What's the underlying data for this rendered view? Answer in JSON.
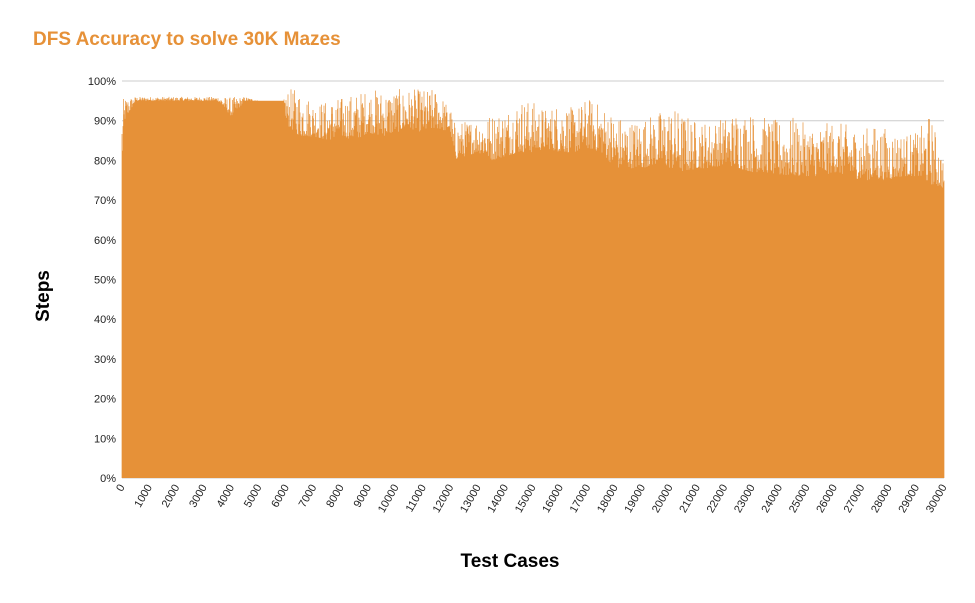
{
  "chart_data": {
    "type": "area",
    "title": "DFS Accuracy to solve 30K Mazes",
    "xlabel": "Test Cases",
    "ylabel": "Steps",
    "xlim": [
      0,
      30000
    ],
    "ylim": [
      0,
      100
    ],
    "y_ticks": [
      "0%",
      "10%",
      "20%",
      "30%",
      "40%",
      "50%",
      "60%",
      "70%",
      "80%",
      "90%",
      "100%"
    ],
    "x_ticks": [
      0,
      1000,
      2000,
      3000,
      4000,
      5000,
      6000,
      7000,
      8000,
      9000,
      10000,
      11000,
      12000,
      13000,
      14000,
      15000,
      16000,
      17000,
      18000,
      19000,
      20000,
      21000,
      22000,
      23000,
      24000,
      25000,
      26000,
      27000,
      28000,
      29000,
      30000
    ],
    "grid": "horizontal",
    "color": "#e69138",
    "series": [
      {
        "x": [
          0,
          100,
          500,
          1000,
          1500,
          2000,
          2500,
          3000,
          3500,
          4000,
          4500,
          5000,
          5500,
          5900,
          6000,
          6500,
          7000,
          7500,
          8000,
          8500,
          9000,
          9500,
          10000,
          10500,
          11000,
          11500,
          12000,
          12100,
          12500,
          13000,
          13500,
          14000,
          14500,
          15000,
          15500,
          16000,
          16500,
          17000,
          17500,
          18000,
          18500,
          19000,
          19500,
          20000,
          20500,
          21000,
          21500,
          22000,
          22500,
          23000,
          23500,
          24000,
          24500,
          25000,
          25500,
          26000,
          26500,
          27000,
          27500,
          28000,
          28500,
          29000,
          29500,
          30000
        ],
        "low": [
          78,
          90,
          95,
          95,
          95,
          95,
          95,
          95,
          95,
          91,
          95,
          95,
          95,
          95,
          89,
          86,
          86,
          85,
          86,
          85,
          87,
          86,
          87,
          88,
          87,
          88,
          87,
          80,
          81,
          82,
          80,
          81,
          82,
          82,
          83,
          82,
          82,
          83,
          82,
          78,
          78,
          78,
          79,
          78,
          77,
          78,
          78,
          79,
          78,
          77,
          77,
          76,
          76,
          76,
          76,
          77,
          76,
          75,
          75,
          75,
          76,
          76,
          74,
          73
        ],
        "high": [
          95,
          96,
          96,
          96,
          96,
          96,
          96,
          96,
          96,
          96,
          96,
          95,
          95,
          95,
          98,
          98,
          95,
          95,
          96,
          97,
          98,
          98,
          98,
          98,
          98,
          98,
          93,
          90,
          90,
          91,
          92,
          93,
          96,
          95,
          93,
          95,
          93,
          96,
          94,
          92,
          90,
          91,
          92,
          94,
          92,
          90,
          90,
          91,
          93,
          92,
          91,
          90,
          91,
          89,
          89,
          90,
          89,
          88,
          89,
          88,
          87,
          87,
          92,
          80
        ]
      }
    ]
  }
}
